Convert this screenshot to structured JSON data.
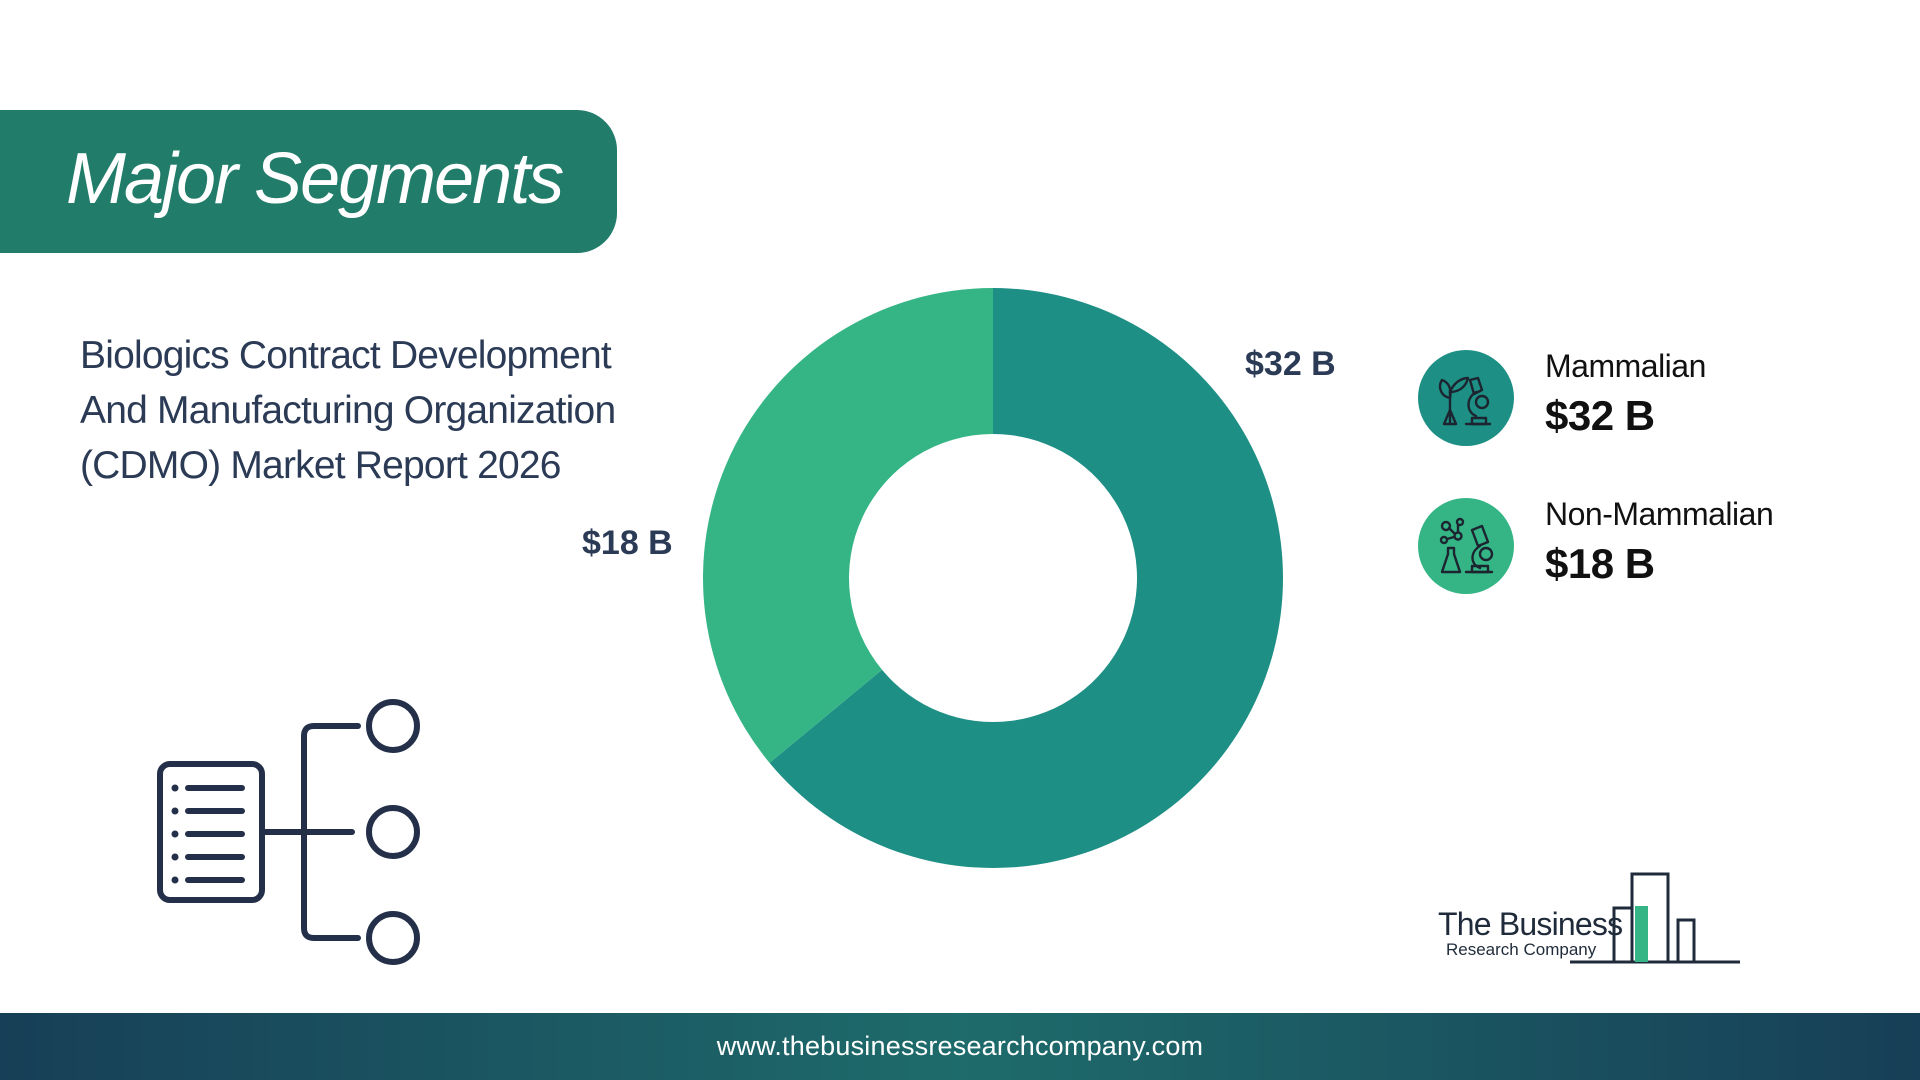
{
  "header": {
    "title": "Major Segments"
  },
  "report": {
    "title_lines": [
      "Biologics Contract Development",
      "And Manufacturing Organization",
      "(CDMO) Market Report 2026"
    ]
  },
  "chart_data": {
    "type": "pie",
    "title": "",
    "categories": [
      "Mammalian",
      "Non-Mammalian"
    ],
    "values": [
      32,
      18
    ],
    "unit": "$ B",
    "data_labels": [
      "$32 B",
      "$18 B"
    ],
    "colors": [
      "#1e8f85",
      "#35b585"
    ],
    "hole": true
  },
  "legend": {
    "items": [
      {
        "name": "Mammalian",
        "value": "$32 B",
        "color": "#1e8f85",
        "icon": "lab-plant-icon"
      },
      {
        "name": "Non-Mammalian",
        "value": "$18 B",
        "color": "#35b585",
        "icon": "microscope-molecule-icon"
      }
    ]
  },
  "logo": {
    "line1": "The Business",
    "line2": "Research Company"
  },
  "footer": {
    "url": "www.thebusinessresearchcompany.com"
  }
}
